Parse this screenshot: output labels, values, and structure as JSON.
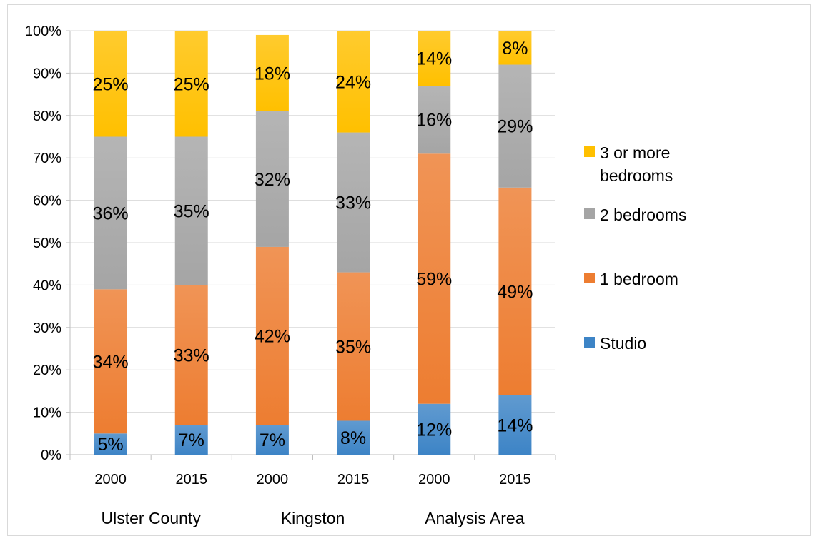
{
  "chart_data": {
    "type": "bar",
    "stacked": true,
    "percent_stacked": true,
    "categories": [
      "2000",
      "2015",
      "2000",
      "2015",
      "2000",
      "2015"
    ],
    "groups": [
      {
        "label": "Ulster County",
        "categories": [
          0,
          1
        ]
      },
      {
        "label": "Kingston",
        "categories": [
          2,
          3
        ]
      },
      {
        "label": "Analysis Area",
        "categories": [
          4,
          5
        ]
      }
    ],
    "series": [
      {
        "name": "Studio",
        "color": "#3d84c6",
        "values": [
          5,
          7,
          7,
          8,
          12,
          14
        ],
        "labels": [
          "5%",
          "7%",
          "7%",
          "8%",
          "12%",
          "14%"
        ]
      },
      {
        "name": "1 bedroom",
        "color": "#ed7d31",
        "values": [
          34,
          33,
          42,
          35,
          59,
          49
        ],
        "labels": [
          "34%",
          "33%",
          "42%",
          "35%",
          "59%",
          "49%"
        ]
      },
      {
        "name": "2 bedrooms",
        "color": "#a5a5a5",
        "values": [
          36,
          35,
          32,
          33,
          16,
          29
        ],
        "labels": [
          "36%",
          "35%",
          "32%",
          "33%",
          "16%",
          "29%"
        ]
      },
      {
        "name": "3 or more bedrooms",
        "color": "#ffc000",
        "values": [
          25,
          25,
          18,
          24,
          14,
          8
        ],
        "labels": [
          "25%",
          "25%",
          "18%",
          "24%",
          "14%",
          "8%"
        ]
      }
    ],
    "y_ticks": [
      "0%",
      "10%",
      "20%",
      "30%",
      "40%",
      "50%",
      "60%",
      "70%",
      "80%",
      "90%",
      "100%"
    ],
    "ylim": [
      0,
      100
    ],
    "grid": true,
    "legend": {
      "position": "right",
      "order": [
        "3 or more bedrooms",
        "2 bedrooms",
        "1 bedroom",
        "Studio"
      ],
      "lines": {
        "3 or more bedrooms": [
          "3 or more",
          "bedrooms"
        ],
        "2 bedrooms": [
          "2 bedrooms"
        ],
        "1 bedroom": [
          "1 bedroom"
        ],
        "Studio": [
          "Studio"
        ]
      }
    }
  }
}
